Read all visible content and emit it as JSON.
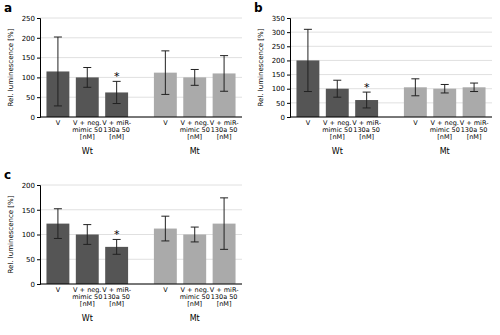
{
  "chart_data": [
    {
      "type": "bar",
      "title": "a",
      "ylabel": "Rel. luminescence [%]",
      "categories": [
        "V",
        "V + neg.\nmimic 50\n[nM]",
        "V + miR-\n130a 50\n[nM]"
      ],
      "series": [
        {
          "name": "Wt",
          "color": "#555555",
          "values": [
            115,
            100,
            62
          ],
          "errors": [
            87,
            25,
            28
          ]
        },
        {
          "name": "Mt",
          "color": "#aaaaaa",
          "values": [
            112,
            100,
            110
          ],
          "errors": [
            55,
            20,
            45
          ]
        }
      ],
      "ylim": [
        0,
        250
      ],
      "yticks": [
        0,
        50,
        100,
        150,
        200,
        250
      ],
      "grid": true,
      "annotations": [
        {
          "text": "*",
          "series": "Wt",
          "category": "V + miR-\n130a 50\n[nM]"
        }
      ]
    },
    {
      "type": "bar",
      "title": "b",
      "ylabel": "Rel. luminescence [%]",
      "categories": [
        "V",
        "V + neg.\nmimic 50\n[nM]",
        "V + miR-\n130a 50\n[nM]"
      ],
      "series": [
        {
          "name": "Wt",
          "color": "#555555",
          "values": [
            200,
            100,
            60
          ],
          "errors": [
            110,
            30,
            28
          ]
        },
        {
          "name": "Mt",
          "color": "#aaaaaa",
          "values": [
            105,
            100,
            105
          ],
          "errors": [
            30,
            15,
            15
          ]
        }
      ],
      "ylim": [
        0,
        350
      ],
      "yticks": [
        0,
        50,
        100,
        150,
        200,
        250,
        300,
        350
      ],
      "grid": true,
      "annotations": [
        {
          "text": "*",
          "series": "Wt",
          "category": "V + miR-\n130a 50\n[nM]"
        }
      ]
    },
    {
      "type": "bar",
      "title": "c",
      "ylabel": "Rel. luminescence [%]",
      "categories": [
        "V",
        "V + neg.\nmimic 50\n[nM]",
        "V + miR-\n130a 50\n[nM]"
      ],
      "series": [
        {
          "name": "Wt",
          "color": "#555555",
          "values": [
            122,
            100,
            75
          ],
          "errors": [
            30,
            20,
            15
          ]
        },
        {
          "name": "Mt",
          "color": "#aaaaaa",
          "values": [
            112,
            100,
            122
          ],
          "errors": [
            25,
            15,
            52
          ]
        }
      ],
      "ylim": [
        0,
        200
      ],
      "yticks": [
        0,
        50,
        100,
        150,
        200
      ],
      "grid": true,
      "annotations": [
        {
          "text": "*",
          "series": "Wt",
          "category": "V + miR-\n130a 50\n[nM]"
        }
      ]
    }
  ]
}
